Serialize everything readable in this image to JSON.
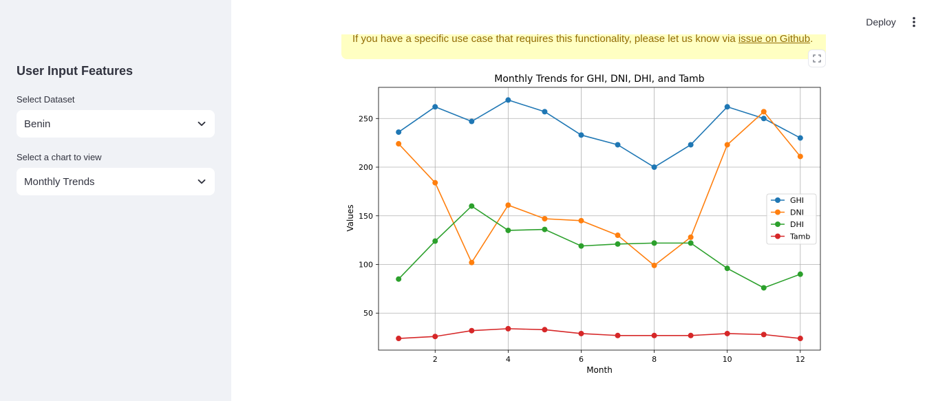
{
  "sidebar": {
    "title": "User Input Features",
    "dataset_label": "Select Dataset",
    "dataset_value": "Benin",
    "chart_label": "Select a chart to view",
    "chart_value": "Monthly Trends"
  },
  "header": {
    "deploy_label": "Deploy"
  },
  "alert": {
    "text": "If you have a specific use case that requires this functionality, please let us know via ",
    "link_text": "issue on Github",
    "suffix": "."
  },
  "colors": {
    "GHI": "#1f77b4",
    "DNI": "#ff7f0e",
    "DHI": "#2ca02c",
    "Tamb": "#d62728"
  },
  "chart_data": {
    "type": "line",
    "title": "Monthly Trends for GHI, DNI, DHI, and Tamb",
    "xlabel": "Month",
    "ylabel": "Values",
    "x": [
      1,
      2,
      3,
      4,
      5,
      6,
      7,
      8,
      9,
      10,
      11,
      12
    ],
    "xticks": [
      2,
      4,
      6,
      8,
      10,
      12
    ],
    "yticks": [
      50,
      100,
      150,
      200,
      250
    ],
    "xlim": [
      0.45,
      12.55
    ],
    "ylim": [
      12,
      282
    ],
    "grid": true,
    "legend_position": "center-right",
    "series": [
      {
        "name": "GHI",
        "values": [
          236,
          262,
          247,
          269,
          257,
          233,
          223,
          200,
          223,
          262,
          250,
          230
        ]
      },
      {
        "name": "DNI",
        "values": [
          224,
          184,
          102,
          161,
          147,
          145,
          130,
          99,
          128,
          223,
          257,
          211
        ]
      },
      {
        "name": "DHI",
        "values": [
          85,
          124,
          160,
          135,
          136,
          119,
          121,
          122,
          122,
          96,
          76,
          90
        ]
      },
      {
        "name": "Tamb",
        "values": [
          24,
          26,
          32,
          34,
          33,
          29,
          27,
          27,
          27,
          29,
          28,
          24
        ]
      }
    ]
  }
}
